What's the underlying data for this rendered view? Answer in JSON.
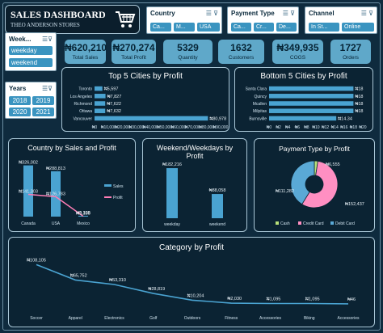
{
  "title": {
    "main": "SALES DASHBOARD",
    "sub": "THEO ANDERSON STORES",
    "icon": "shopping-cart-icon"
  },
  "slicers": {
    "country": {
      "label": "Country",
      "chips": [
        "Ca...",
        "M...",
        "USA"
      ]
    },
    "payment": {
      "label": "Payment Type",
      "chips": [
        "Ca...",
        "Cr...",
        "De..."
      ]
    },
    "channel": {
      "label": "Channel",
      "chips": [
        "In St...",
        "Online"
      ]
    },
    "weekday": {
      "label": "Week...",
      "chips": [
        "weekday",
        "weekend"
      ]
    },
    "years": {
      "label": "Years",
      "chips": [
        "2018",
        "2019",
        "2020",
        "2021"
      ]
    }
  },
  "kpis": [
    {
      "value": "₦620,210",
      "label": "Total Sales"
    },
    {
      "value": "₦270,274",
      "label": "Total Profit"
    },
    {
      "value": "5329",
      "label": "Quantity"
    },
    {
      "value": "1632",
      "label": "Customers"
    },
    {
      "value": "₦349,935",
      "label": "COGS"
    },
    {
      "value": "1727",
      "label": "Orders"
    }
  ],
  "colors": {
    "background": "#0f2b3e",
    "panel": "#0b2333",
    "bar": "#4aa3d1",
    "accent": "#ff7eb6",
    "kpi": "#5fa8c9"
  },
  "top_cities": {
    "title": "Top 5 Cities by Profit",
    "chart_data": {
      "type": "bar",
      "categories": [
        "Toronto",
        "Los Angeles",
        "Richmond",
        "Ottawa",
        "Vancouver"
      ],
      "values": [
        5597,
        7827,
        7622,
        7632,
        80978
      ],
      "value_labels": [
        "₦5,597",
        "₦7,827",
        "₦7,622",
        "₦7,632",
        "₦80,978"
      ],
      "xticks": [
        "₦0",
        "₦10,000",
        "₦20,000",
        "₦30,000",
        "₦40,000",
        "₦50,000",
        "₦60,000",
        "₦70,000",
        "₦80,000",
        "₦90,000"
      ],
      "xlim": [
        0,
        90000
      ]
    }
  },
  "bottom_cities": {
    "title": "Bottom 5 Cities by Profit",
    "chart_data": {
      "type": "bar",
      "categories": [
        "Santa Clara",
        "Quincy",
        "Mcallen",
        "Milpitas",
        "Burnsville"
      ],
      "values": [
        18,
        18,
        18,
        18,
        14.34
      ],
      "value_labels": [
        "₦18",
        "₦18",
        "₦18",
        "₦18",
        "₦14.34"
      ],
      "xticks": [
        "₦0",
        "₦2",
        "₦4",
        "₦6",
        "₦8",
        "₦10",
        "₦12",
        "₦14",
        "₦16",
        "₦18",
        "₦20"
      ],
      "xlim": [
        0,
        20
      ]
    }
  },
  "country_chart": {
    "title": "Country by Sales and Profit",
    "chart_data": {
      "type": "bar",
      "categories": [
        "Canada",
        "USA",
        "Mexico"
      ],
      "series": [
        {
          "name": "Sales",
          "values": [
            326002,
            288813,
            5395
          ],
          "labels": [
            "₦326,002",
            "₦288,813",
            "₦5,395"
          ]
        },
        {
          "name": "Profit",
          "values": [
            141303,
            126783,
            2188
          ],
          "labels": [
            "₦141,303",
            "₦126,783",
            "₦2,188"
          ]
        }
      ],
      "ylim": [
        0,
        360000
      ]
    }
  },
  "weekend_chart": {
    "title_line1": "Weekend/Weekdays by",
    "title_line2": "Profit",
    "chart_data": {
      "type": "bar",
      "categories": [
        "weekday",
        "weekend"
      ],
      "values": [
        182216,
        88058
      ],
      "value_labels": [
        "₦182,216",
        "₦88,058"
      ],
      "ylim": [
        0,
        200000
      ]
    }
  },
  "payment_chart": {
    "title": "Payment Type by Profit",
    "chart_data": {
      "type": "pie",
      "labels": [
        "Cash",
        "Credit Card",
        "Debit Card"
      ],
      "values": [
        6555,
        152437,
        111282
      ],
      "value_labels": [
        "₦6,555",
        "₦152,437",
        "₦111,282"
      ],
      "colors": [
        "#b8e07a",
        "#ff8fc2",
        "#5aa9d6"
      ]
    }
  },
  "category_chart": {
    "title": "Category by Profit",
    "chart_data": {
      "type": "line",
      "categories": [
        "Soccer",
        "Apparel",
        "Electronics",
        "Golf",
        "Outdoors",
        "Fitness",
        "Accessories",
        "Biking",
        "Accessories"
      ],
      "values": [
        108105,
        65752,
        53310,
        28819,
        10204,
        2030,
        1095,
        1095,
        46
      ],
      "value_labels": [
        "₦108,105",
        "₦65,752",
        "₦53,310",
        "₦28,819",
        "₦10,204",
        "₦2,030",
        "₦1,095",
        "₦1,095",
        "₦46"
      ],
      "ylim": [
        0,
        120000
      ]
    }
  }
}
